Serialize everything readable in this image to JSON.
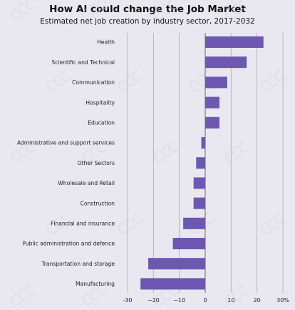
{
  "chart_data": {
    "type": "bar",
    "orientation": "horizontal",
    "title": "How AI could change the Job Market",
    "subtitle": "Estimated net job creation by industry sector, 2017-2032",
    "xlabel": "",
    "ylabel": "",
    "categories": [
      "Health",
      "Scientific and Technical",
      "Communication",
      "Hospitality",
      "Education",
      "Administrative and support services",
      "Other Sectors",
      "Wholesale and Retail",
      "Construction",
      "Financial and insurance",
      "Public administration and defence",
      "Transportation and storage",
      "Manufacturing"
    ],
    "values": [
      22.5,
      16,
      8.5,
      5.5,
      5.5,
      -1.5,
      -3.5,
      -4.5,
      -4.5,
      -8.5,
      -12.5,
      -22,
      -25
    ],
    "xlim": [
      -30,
      30
    ],
    "xticks": [
      -30,
      -20,
      -10,
      0,
      10,
      20,
      30
    ],
    "xtick_labels": [
      "-30",
      "−20",
      "−10",
      "0",
      "10",
      "20",
      "30%"
    ],
    "grid": true,
    "bar_color": "#6c58b0"
  }
}
